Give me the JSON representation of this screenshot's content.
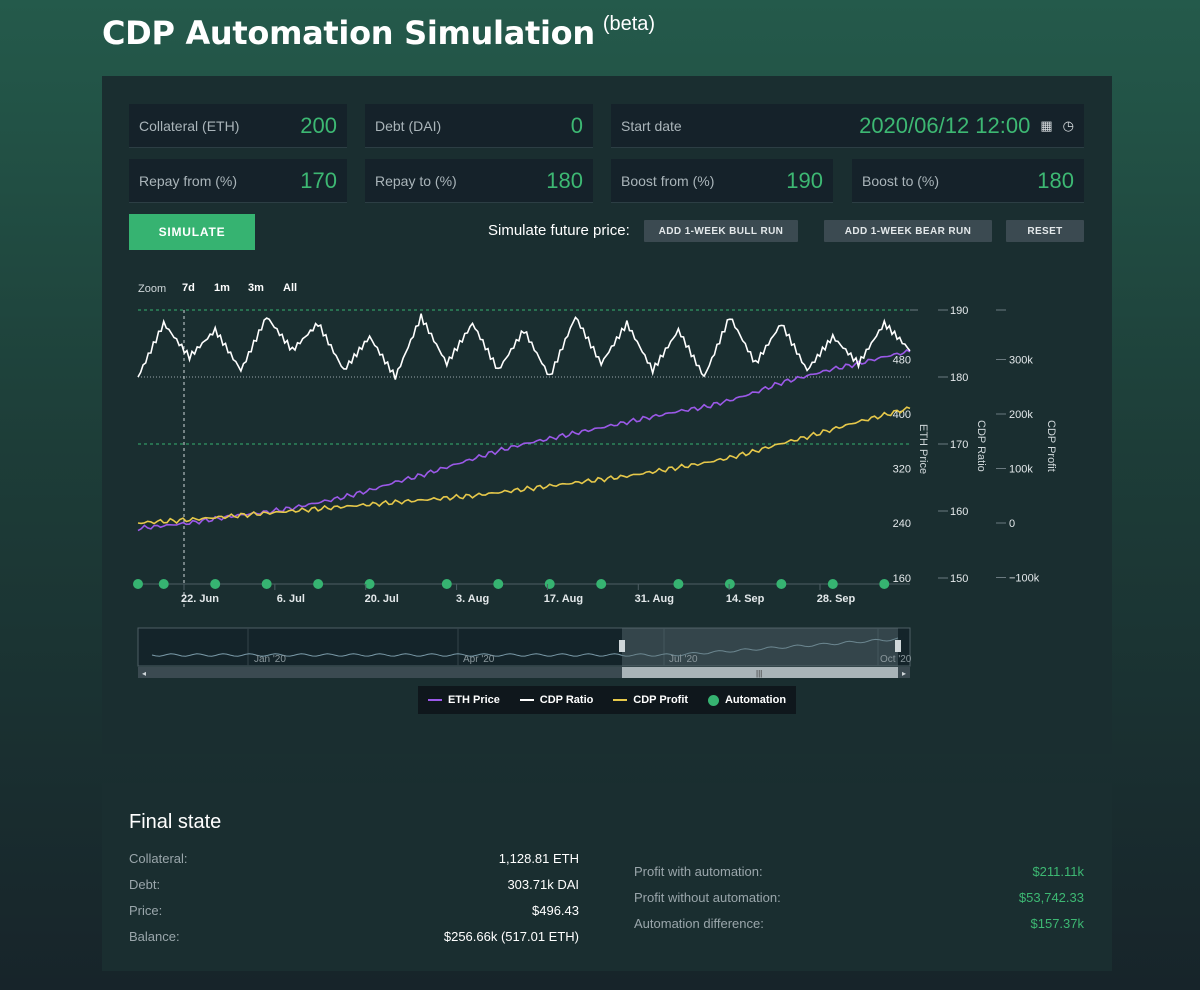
{
  "header": {
    "title": "CDP Automation Simulation",
    "badge": "(beta)"
  },
  "inputs": {
    "collateral": {
      "label": "Collateral (ETH)",
      "value": "200"
    },
    "debt": {
      "label": "Debt (DAI)",
      "value": "0"
    },
    "start_date": {
      "label": "Start date",
      "value": "2020/06/12 12:00"
    },
    "repay_from": {
      "label": "Repay from (%)",
      "value": "170"
    },
    "repay_to": {
      "label": "Repay to (%)",
      "value": "180"
    },
    "boost_from": {
      "label": "Boost from (%)",
      "value": "190"
    },
    "boost_to": {
      "label": "Boost to (%)",
      "value": "180"
    }
  },
  "icons": {
    "calendar": "calendar-icon",
    "clock": "clock-icon"
  },
  "actions": {
    "simulate": "SIMULATE",
    "future_label": "Simulate future price:",
    "bull": "ADD 1-WEEK BULL RUN",
    "bear": "ADD 1-WEEK BEAR RUN",
    "reset": "RESET"
  },
  "zoom": {
    "label": "Zoom",
    "options": [
      "7d",
      "1m",
      "3m",
      "All"
    ]
  },
  "chart_data": {
    "type": "line",
    "x_ticks": [
      "22. Jun",
      "6. Jul",
      "20. Jul",
      "3. Aug",
      "17. Aug",
      "31. Aug",
      "14. Sep",
      "28. Sep"
    ],
    "axes": {
      "eth_price": {
        "label": "ETH Price",
        "ticks": [
          "240",
          "320",
          "400",
          "480"
        ]
      },
      "cdp_ratio": {
        "label": "CDP Ratio",
        "ticks": [
          "150",
          "160",
          "170",
          "180",
          "190"
        ]
      },
      "cdp_profit": {
        "label": "CDP Profit",
        "ticks": [
          "−100k",
          "0",
          "100k",
          "200k",
          "300k"
        ]
      }
    },
    "ratio_lines": [
      170,
      180,
      190
    ],
    "series": [
      {
        "name": "ETH Price",
        "color": "#9b59e8",
        "axis": "eth_price",
        "values": [
          232,
          236,
          240,
          246,
          252,
          256,
          262,
          270,
          278,
          288,
          300,
          310,
          322,
          334,
          346,
          356,
          364,
          372,
          380,
          388,
          396,
          404,
          410,
          420,
          432,
          446,
          456,
          466,
          474,
          484,
          492
        ]
      },
      {
        "name": "CDP Ratio",
        "color": "#ffffff",
        "axis": "cdp_ratio",
        "values": [
          180,
          188,
          183,
          187,
          181,
          189,
          184,
          188,
          181,
          186,
          180,
          189,
          182,
          188,
          181,
          187,
          180,
          189,
          182,
          188,
          181,
          187,
          180,
          189,
          182,
          188,
          181,
          186,
          182,
          188,
          184
        ]
      },
      {
        "name": "CDP Profit",
        "color": "#e6c84a",
        "axis": "cdp_profit",
        "values": [
          0,
          3,
          6,
          10,
          14,
          18,
          22,
          26,
          30,
          34,
          38,
          42,
          46,
          50,
          56,
          62,
          68,
          74,
          80,
          86,
          94,
          102,
          110,
          120,
          132,
          146,
          158,
          172,
          186,
          198,
          211
        ]
      },
      {
        "name": "Automation",
        "color": "#36b371",
        "type": "markers",
        "dates_index": [
          0,
          1,
          3,
          5,
          7,
          9,
          12,
          14,
          16,
          18,
          21,
          23,
          25,
          27,
          29
        ]
      }
    ],
    "navigator": {
      "labels": [
        "Jan '20",
        "Apr '20",
        "Jul '20",
        "Oct '20"
      ]
    },
    "legend_placement": "bottom-center"
  },
  "legend": {
    "eth": "ETH Price",
    "ratio": "CDP Ratio",
    "profit": "CDP Profit",
    "automation": "Automation"
  },
  "final_state": {
    "title": "Final state",
    "left": [
      {
        "label": "Collateral:",
        "value": "1,128.81 ETH"
      },
      {
        "label": "Debt:",
        "value": "303.71k DAI"
      },
      {
        "label": "Price:",
        "value": "$496.43"
      },
      {
        "label": "Balance:",
        "value": "$256.66k (517.01 ETH)"
      }
    ],
    "right": [
      {
        "label": "Profit with automation:",
        "value": "$211.11k"
      },
      {
        "label": "Profit without automation:",
        "value": "$53,742.33"
      },
      {
        "label": "Automation difference:",
        "value": "$157.37k"
      }
    ]
  }
}
